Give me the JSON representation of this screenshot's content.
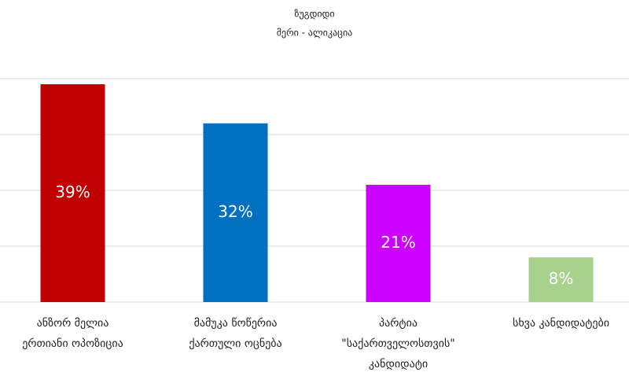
{
  "chart_data": {
    "type": "bar",
    "title": "ზუგდიდი",
    "subtitle": "მერი - ალიკაცია",
    "categories": [
      [
        "ანზორ მელია",
        "ერთიანი ოპოზიცია"
      ],
      [
        "მამუკა წოწერია",
        "ქართული ოცნება"
      ],
      [
        "პარტია",
        "\"საქართველოსთვის\"",
        "კანდიდატი"
      ],
      [
        "სხვა კანდიდატები"
      ]
    ],
    "values": [
      39,
      32,
      21,
      8
    ],
    "value_labels": [
      "39%",
      "32%",
      "21%",
      "8%"
    ],
    "colors": [
      "#c00000",
      "#0070c0",
      "#cc00ff",
      "#a9d18e"
    ],
    "ylim": [
      0,
      40
    ],
    "yticks": [
      0,
      10,
      20,
      30,
      40
    ],
    "grid": true
  }
}
